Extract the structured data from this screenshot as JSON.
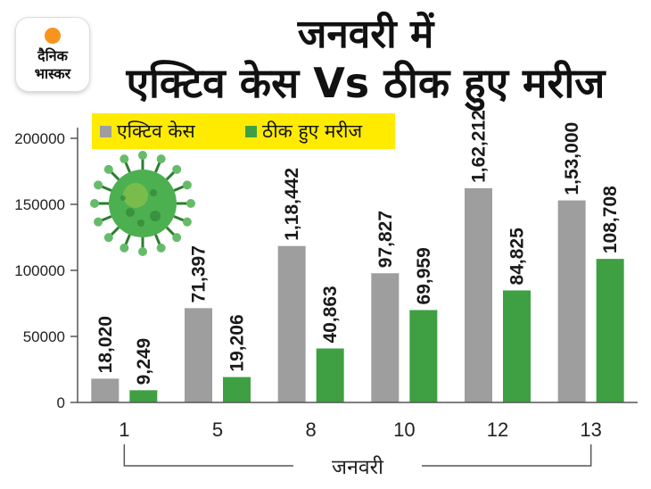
{
  "brand": {
    "line1": "दैनिक",
    "line2": "भास्कर",
    "accent_color": "#f7941d"
  },
  "title_line1": "जनवरी में",
  "title_line2": "एक्टिव केस Vs ठीक हुए मरीज",
  "decoration": {
    "icon": "coronavirus-icon",
    "color": "#4caf50"
  },
  "chart_data": {
    "type": "bar",
    "title": "जनवरी में एक्टिव केस Vs ठीक हुए मरीज",
    "categories": [
      "1",
      "5",
      "8",
      "10",
      "12",
      "13"
    ],
    "xlabel": "जनवरी",
    "ylabel": "",
    "ylim": [
      0,
      200000
    ],
    "yticks": [
      "0",
      "50000",
      "100000",
      "150000",
      "200000"
    ],
    "grid": false,
    "legend_position": "top-left",
    "series": [
      {
        "name": "एक्टिव केस",
        "color": "#9e9e9e",
        "values": [
          18020,
          71397,
          118442,
          97827,
          162212,
          153000
        ],
        "labels": [
          "18,020",
          "71,397",
          "1,18,442",
          "97,827",
          "1,62,212",
          "1,53,000"
        ]
      },
      {
        "name": "ठीक हुए मरीज",
        "color": "#3ea043",
        "values": [
          9249,
          19206,
          40863,
          69959,
          84825,
          108708
        ],
        "labels": [
          "9,249",
          "19,206",
          "40,863",
          "69,959",
          "84,825",
          "108,708"
        ]
      }
    ]
  }
}
